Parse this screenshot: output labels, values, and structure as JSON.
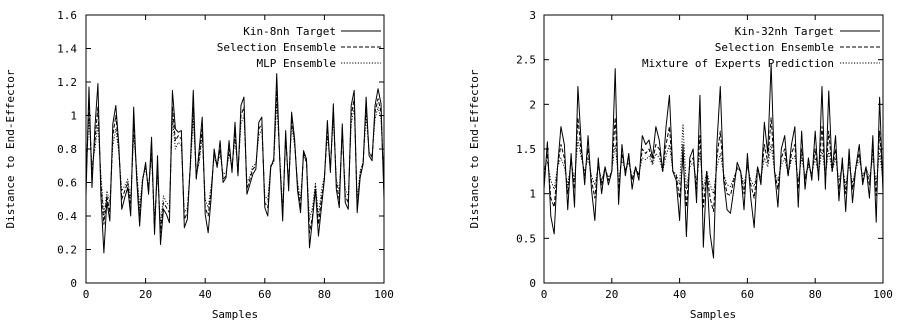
{
  "chart_data": [
    {
      "type": "line",
      "xlabel": "Samples",
      "ylabel": "Distance to End-Effector",
      "xlim": [
        0,
        100
      ],
      "ylim": [
        0,
        1.6
      ],
      "xticks": [
        "0",
        "20",
        "40",
        "60",
        "80",
        "100"
      ],
      "yticks": [
        "0",
        "0.2",
        "0.4",
        "0.6",
        "0.8",
        "1",
        "1.2",
        "1.4",
        "1.6"
      ],
      "legend_position": "top-right",
      "grid": false,
      "series": [
        {
          "name": "Kin-8nh Target",
          "style": "solid",
          "values": [
            0.52,
            1.17,
            0.57,
            0.93,
            1.19,
            0.52,
            0.18,
            0.49,
            0.37,
            0.95,
            1.06,
            0.83,
            0.44,
            0.51,
            0.57,
            0.4,
            1.05,
            0.62,
            0.34,
            0.61,
            0.72,
            0.53,
            0.87,
            0.29,
            0.76,
            0.23,
            0.44,
            0.41,
            0.36,
            1.15,
            0.92,
            0.9,
            0.91,
            0.33,
            0.38,
            0.7,
            1.15,
            0.62,
            0.8,
            0.99,
            0.41,
            0.3,
            0.51,
            0.8,
            0.69,
            0.85,
            0.6,
            0.63,
            0.85,
            0.66,
            0.96,
            0.64,
            1.06,
            1.11,
            0.53,
            0.59,
            0.65,
            0.68,
            0.96,
            0.99,
            0.45,
            0.4,
            0.69,
            0.74,
            1.25,
            0.74,
            0.37,
            0.91,
            0.55,
            1.02,
            0.86,
            0.55,
            0.42,
            0.79,
            0.74,
            0.21,
            0.38,
            0.56,
            0.28,
            0.45,
            0.62,
            0.97,
            0.66,
            1.07,
            0.56,
            0.45,
            0.95,
            0.48,
            0.44,
            1.06,
            1.15,
            0.42,
            0.63,
            0.71,
            1.11,
            0.76,
            0.73,
            1.06,
            1.16,
            1.07,
            0.5
          ]
        },
        {
          "name": "Selection Ensemble",
          "style": "dashed",
          "values": [
            0.6,
            1.08,
            0.65,
            0.85,
            1.05,
            0.6,
            0.35,
            0.52,
            0.42,
            0.88,
            1.0,
            0.8,
            0.5,
            0.55,
            0.6,
            0.45,
            0.95,
            0.65,
            0.4,
            0.62,
            0.7,
            0.55,
            0.8,
            0.32,
            0.7,
            0.3,
            0.48,
            0.45,
            0.42,
            1.05,
            0.85,
            0.88,
            0.86,
            0.38,
            0.42,
            0.7,
            1.05,
            0.63,
            0.75,
            0.92,
            0.45,
            0.4,
            0.55,
            0.78,
            0.7,
            0.8,
            0.62,
            0.64,
            0.8,
            0.68,
            0.9,
            0.65,
            1.0,
            1.05,
            0.56,
            0.62,
            0.68,
            0.7,
            0.92,
            0.95,
            0.48,
            0.45,
            0.7,
            0.72,
            1.15,
            0.75,
            0.4,
            0.88,
            0.58,
            0.98,
            0.84,
            0.58,
            0.45,
            0.78,
            0.72,
            0.3,
            0.4,
            0.58,
            0.35,
            0.5,
            0.62,
            0.92,
            0.68,
            1.02,
            0.6,
            0.5,
            0.92,
            0.52,
            0.48,
            1.0,
            1.1,
            0.45,
            0.65,
            0.72,
            1.05,
            0.78,
            0.75,
            1.02,
            1.1,
            1.02,
            0.55
          ]
        },
        {
          "name": "MLP Ensemble",
          "style": "dotted",
          "values": [
            0.65,
            0.98,
            0.7,
            0.8,
            0.95,
            0.65,
            0.4,
            0.55,
            0.48,
            0.82,
            0.92,
            0.78,
            0.55,
            0.58,
            0.62,
            0.5,
            0.88,
            0.68,
            0.45,
            0.63,
            0.68,
            0.58,
            0.75,
            0.38,
            0.65,
            0.35,
            0.52,
            0.48,
            0.46,
            0.98,
            0.8,
            0.84,
            0.82,
            0.42,
            0.45,
            0.68,
            0.98,
            0.65,
            0.72,
            0.88,
            0.5,
            0.45,
            0.58,
            0.75,
            0.7,
            0.77,
            0.65,
            0.66,
            0.77,
            0.7,
            0.86,
            0.66,
            0.95,
            1.0,
            0.6,
            0.64,
            0.7,
            0.71,
            0.88,
            0.92,
            0.52,
            0.5,
            0.7,
            0.72,
            1.08,
            0.76,
            0.45,
            0.85,
            0.6,
            0.94,
            0.82,
            0.6,
            0.5,
            0.76,
            0.72,
            0.38,
            0.45,
            0.6,
            0.4,
            0.55,
            0.64,
            0.88,
            0.7,
            0.98,
            0.62,
            0.55,
            0.88,
            0.56,
            0.52,
            0.95,
            1.05,
            0.5,
            0.67,
            0.72,
            1.0,
            0.78,
            0.76,
            0.98,
            1.05,
            0.98,
            0.6
          ]
        }
      ]
    },
    {
      "type": "line",
      "xlabel": "Samples",
      "ylabel": "Distance to End-Effector",
      "xlim": [
        0,
        100
      ],
      "ylim": [
        0,
        3
      ],
      "xticks": [
        "0",
        "20",
        "40",
        "60",
        "80",
        "100"
      ],
      "yticks": [
        "0",
        "0.5",
        "1",
        "1.5",
        "2",
        "2.5",
        "3"
      ],
      "legend_position": "top-right",
      "grid": false,
      "series": [
        {
          "name": "Kin-32nh Target",
          "style": "solid",
          "values": [
            1.05,
            1.58,
            0.75,
            0.55,
            1.3,
            1.75,
            1.55,
            0.82,
            1.45,
            0.85,
            2.2,
            1.55,
            1.1,
            1.65,
            1.05,
            0.7,
            1.4,
            1.0,
            1.3,
            1.1,
            1.25,
            2.4,
            0.88,
            1.55,
            1.2,
            1.45,
            1.05,
            1.3,
            1.15,
            1.65,
            1.55,
            1.6,
            1.4,
            1.75,
            1.6,
            1.25,
            1.75,
            2.1,
            1.25,
            1.15,
            0.7,
            1.55,
            0.52,
            1.4,
            1.5,
            0.9,
            2.1,
            0.4,
            1.25,
            0.55,
            0.28,
            1.55,
            2.2,
            1.15,
            0.82,
            0.78,
            1.05,
            1.35,
            1.25,
            0.82,
            1.45,
            0.95,
            0.62,
            1.3,
            1.1,
            1.8,
            1.45,
            2.45,
            1.25,
            0.85,
            1.5,
            1.65,
            1.2,
            1.55,
            1.75,
            0.85,
            1.7,
            1.05,
            1.4,
            1.15,
            1.7,
            1.15,
            2.2,
            1.05,
            2.15,
            1.25,
            1.65,
            0.92,
            1.4,
            0.8,
            1.5,
            0.9,
            1.3,
            1.55,
            1.1,
            1.3,
            0.95,
            1.65,
            0.68,
            2.08,
            1.0
          ]
        },
        {
          "name": "Selection Ensemble",
          "style": "dashed",
          "values": [
            1.2,
            1.45,
            0.95,
            0.85,
            1.3,
            1.55,
            1.4,
            1.0,
            1.4,
            1.05,
            1.85,
            1.45,
            1.2,
            1.5,
            1.15,
            0.95,
            1.35,
            1.1,
            1.3,
            1.15,
            1.25,
            1.85,
            1.05,
            1.45,
            1.25,
            1.4,
            1.15,
            1.3,
            1.2,
            1.5,
            1.45,
            1.5,
            1.35,
            1.55,
            1.5,
            1.25,
            1.55,
            1.75,
            1.25,
            1.2,
            0.95,
            1.4,
            0.85,
            1.35,
            1.4,
            1.05,
            1.65,
            0.85,
            1.25,
            0.95,
            0.8,
            1.4,
            1.7,
            1.2,
            1.0,
            0.98,
            1.15,
            1.3,
            1.25,
            1.0,
            1.35,
            1.1,
            0.95,
            1.3,
            1.15,
            1.55,
            1.35,
            1.85,
            1.25,
            1.05,
            1.4,
            1.5,
            1.2,
            1.45,
            1.55,
            1.05,
            1.5,
            1.15,
            1.35,
            1.2,
            1.5,
            1.2,
            1.75,
            1.15,
            1.7,
            1.25,
            1.5,
            1.05,
            1.35,
            1.0,
            1.4,
            1.05,
            1.3,
            1.45,
            1.15,
            1.3,
            1.1,
            1.5,
            0.98,
            1.7,
            1.1
          ]
        },
        {
          "name": "Mixture of Experts Prediction",
          "style": "dotted",
          "values": [
            1.3,
            1.35,
            1.15,
            1.05,
            1.3,
            1.4,
            1.3,
            1.1,
            1.35,
            1.15,
            1.6,
            1.4,
            1.25,
            1.4,
            1.2,
            1.1,
            1.3,
            1.15,
            1.28,
            1.18,
            1.25,
            1.55,
            1.15,
            1.38,
            1.25,
            1.35,
            1.18,
            1.28,
            1.22,
            1.4,
            1.38,
            1.42,
            1.32,
            1.45,
            1.4,
            1.25,
            1.42,
            1.55,
            1.25,
            1.22,
            1.1,
            1.78,
            1.05,
            1.3,
            1.35,
            1.15,
            1.45,
            1.05,
            1.25,
            1.1,
            1.0,
            1.3,
            1.45,
            1.22,
            1.1,
            1.08,
            1.18,
            1.28,
            1.25,
            1.1,
            1.3,
            1.15,
            1.08,
            1.28,
            1.18,
            1.4,
            1.3,
            1.55,
            1.25,
            1.15,
            1.32,
            1.4,
            1.22,
            1.38,
            1.42,
            1.15,
            1.4,
            1.2,
            1.3,
            1.22,
            1.4,
            1.22,
            1.5,
            1.2,
            1.48,
            1.25,
            1.4,
            1.15,
            1.3,
            1.1,
            1.32,
            1.12,
            1.28,
            1.38,
            1.2,
            1.28,
            1.18,
            1.4,
            1.12,
            1.45,
            1.15
          ]
        }
      ]
    }
  ]
}
